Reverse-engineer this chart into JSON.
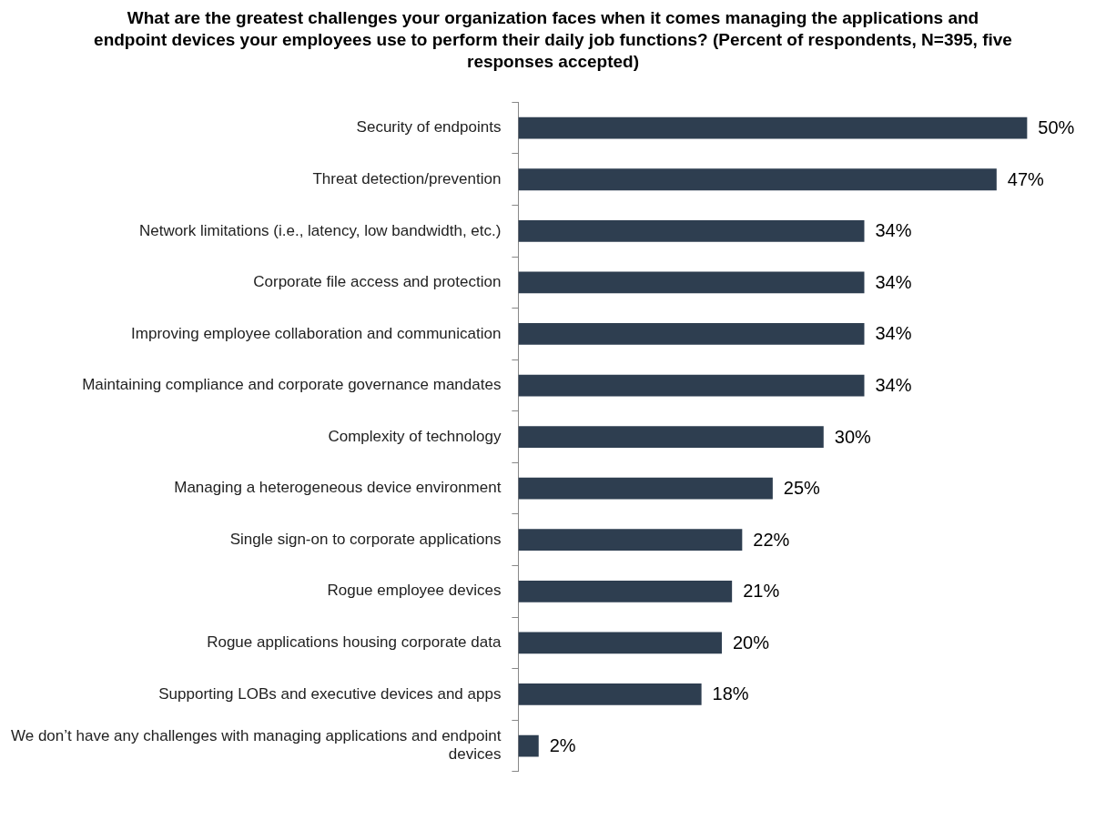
{
  "chart_data": {
    "type": "bar",
    "orientation": "horizontal",
    "title": "What are the greatest challenges your organization faces when it comes managing the applications and endpoint devices your employees use to perform their daily job functions? (Percent of respondents, N=395, five responses accepted)",
    "categories": [
      "Security of endpoints",
      "Threat detection/prevention",
      "Network limitations (i.e., latency, low bandwidth, etc.)",
      "Corporate file access and protection",
      "Improving employee collaboration and communication",
      "Maintaining compliance and corporate governance mandates",
      "Complexity of technology",
      "Managing a heterogeneous device environment",
      "Single sign-on to corporate applications",
      "Rogue employee devices",
      "Rogue applications housing corporate data",
      "Supporting LOBs and executive devices and apps",
      "We don’t have any challenges with managing applications and endpoint devices"
    ],
    "values": [
      50,
      47,
      34,
      34,
      34,
      34,
      30,
      25,
      22,
      21,
      20,
      18,
      2
    ],
    "value_labels": [
      "50%",
      "47%",
      "34%",
      "34%",
      "34%",
      "34%",
      "30%",
      "25%",
      "22%",
      "21%",
      "20%",
      "18%",
      "2%"
    ],
    "color": "#2e3e50",
    "legend": false
  }
}
